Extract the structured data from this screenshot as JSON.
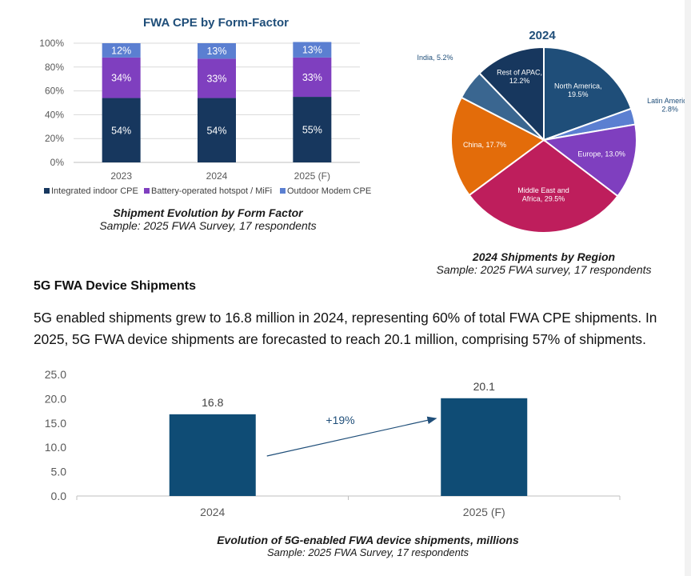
{
  "colors": {
    "navy": "#1f4e79",
    "purple": "#7f3fbf",
    "lightblue": "#5b7fd1",
    "orange": "#e36c0a",
    "magenta": "#be1e5c",
    "steel": "#3a6690",
    "darknavy": "#17375e",
    "bar5g": "#0f4c75"
  },
  "stacked": {
    "title": "FWA CPE by Form-Factor",
    "caption_title": "Shipment Evolution by Form Factor",
    "caption_sample": "Sample: 2025 FWA Survey, 17 respondents",
    "legend": [
      "Integrated indoor CPE",
      "Battery-operated hotspot / MiFi",
      "Outdoor Modem CPE"
    ]
  },
  "pie": {
    "title": "2024",
    "caption_title": "2024 Shipments by Region",
    "caption_sample": "Sample: 2025 FWA survey, 17 respondents"
  },
  "section": {
    "title": "5G FWA Device Shipments",
    "paragraph": "5G enabled shipments grew to 16.8 million in 2024, representing 60% of total FWA CPE shipments. In 2025, 5G FWA device shipments are forecasted to reach 20.1 million, comprising 57% of shipments."
  },
  "bar5g": {
    "annotation": "+19%",
    "caption_title": "Evolution of 5G-enabled FWA device shipments, millions",
    "caption_sample": "Sample: 2025 FWA Survey, 17 respondents"
  },
  "chart_data": [
    {
      "type": "bar",
      "stacked": true,
      "title": "FWA CPE by Form-Factor",
      "categories": [
        "2023",
        "2024",
        "2025 (F)"
      ],
      "series": [
        {
          "name": "Integrated indoor CPE",
          "values": [
            54,
            54,
            55
          ],
          "labels": [
            "54%",
            "54%",
            "55%"
          ]
        },
        {
          "name": "Battery-operated hotspot / MiFi",
          "values": [
            34,
            33,
            33
          ],
          "labels": [
            "34%",
            "33%",
            "33%"
          ]
        },
        {
          "name": "Outdoor Modem CPE",
          "values": [
            12,
            13,
            13
          ],
          "labels": [
            "12%",
            "13%",
            "13%"
          ]
        }
      ],
      "ylim": [
        0,
        100
      ],
      "yticks": [
        "0%",
        "20%",
        "40%",
        "60%",
        "80%",
        "100%"
      ],
      "ytick_values": [
        0,
        20,
        40,
        60,
        80,
        100
      ],
      "legend_position": "bottom"
    },
    {
      "type": "pie",
      "title": "2024",
      "slices": [
        {
          "label": "North America",
          "value": 19.5,
          "text": "19.5%"
        },
        {
          "label": "Latin America",
          "value": 2.8,
          "text": "2.8%"
        },
        {
          "label": "Europe",
          "value": 13.0,
          "text": "13.0%"
        },
        {
          "label": "Middle East and Africa",
          "value": 29.5,
          "text": "29.5%"
        },
        {
          "label": "China",
          "value": 17.7,
          "text": "17.7%"
        },
        {
          "label": "India",
          "value": 5.2,
          "text": "5.2%"
        },
        {
          "label": "Rest of APAC",
          "value": 12.2,
          "text": "12.2%"
        }
      ]
    },
    {
      "type": "bar",
      "title": "",
      "categories": [
        "2024",
        "2025 (F)"
      ],
      "values": [
        16.8,
        20.1
      ],
      "value_labels": [
        "16.8",
        "20.1"
      ],
      "ylim": [
        0,
        25
      ],
      "yticks": [
        "0.0",
        "5.0",
        "10.0",
        "15.0",
        "20.0",
        "25.0"
      ],
      "ytick_values": [
        0,
        5,
        10,
        15,
        20,
        25
      ],
      "annotations": [
        "+19%"
      ]
    }
  ]
}
